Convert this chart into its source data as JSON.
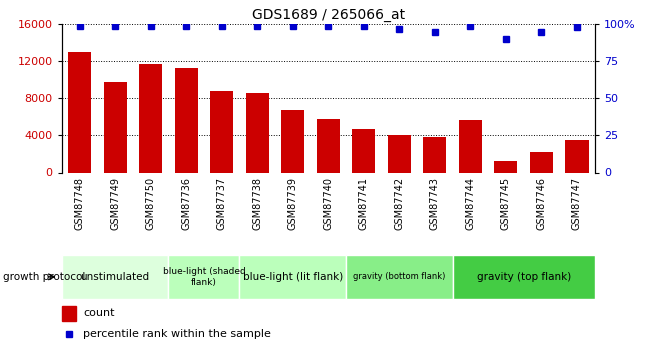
{
  "title": "GDS1689 / 265066_at",
  "samples": [
    "GSM87748",
    "GSM87749",
    "GSM87750",
    "GSM87736",
    "GSM87737",
    "GSM87738",
    "GSM87739",
    "GSM87740",
    "GSM87741",
    "GSM87742",
    "GSM87743",
    "GSM87744",
    "GSM87745",
    "GSM87746",
    "GSM87747"
  ],
  "counts": [
    13000,
    9800,
    11700,
    11300,
    8800,
    8600,
    6700,
    5800,
    4700,
    4000,
    3800,
    5700,
    1200,
    2200,
    3500
  ],
  "percentile_ranks": [
    99,
    99,
    99,
    99,
    99,
    99,
    99,
    99,
    99,
    97,
    95,
    99,
    90,
    95,
    98
  ],
  "bar_color": "#cc0000",
  "dot_color": "#0000cc",
  "groups": [
    {
      "label": "unstimulated",
      "start": 0,
      "end": 3,
      "color": "#ddffdd",
      "fontsize": 7.5
    },
    {
      "label": "blue-light (shaded\nflank)",
      "start": 3,
      "end": 5,
      "color": "#bbffbb",
      "fontsize": 6.5
    },
    {
      "label": "blue-light (lit flank)",
      "start": 5,
      "end": 8,
      "color": "#bbffbb",
      "fontsize": 7.5
    },
    {
      "label": "gravity (bottom flank)",
      "start": 8,
      "end": 11,
      "color": "#88ee88",
      "fontsize": 6.0
    },
    {
      "label": "gravity (top flank)",
      "start": 11,
      "end": 15,
      "color": "#44cc44",
      "fontsize": 7.5
    }
  ],
  "ylim_left": [
    0,
    16000
  ],
  "ylim_right": [
    0,
    100
  ],
  "yticks_left": [
    0,
    4000,
    8000,
    12000,
    16000
  ],
  "yticks_right": [
    0,
    25,
    50,
    75,
    100
  ],
  "left_tick_color": "#cc0000",
  "right_tick_color": "#0000cc",
  "legend_count_color": "#cc0000",
  "legend_pct_color": "#0000cc",
  "tick_label_fontsize": 7,
  "bar_width": 0.65,
  "grid_linestyle": "dotted",
  "grid_color": "black",
  "gray_bg_color": "#c8c8c8"
}
